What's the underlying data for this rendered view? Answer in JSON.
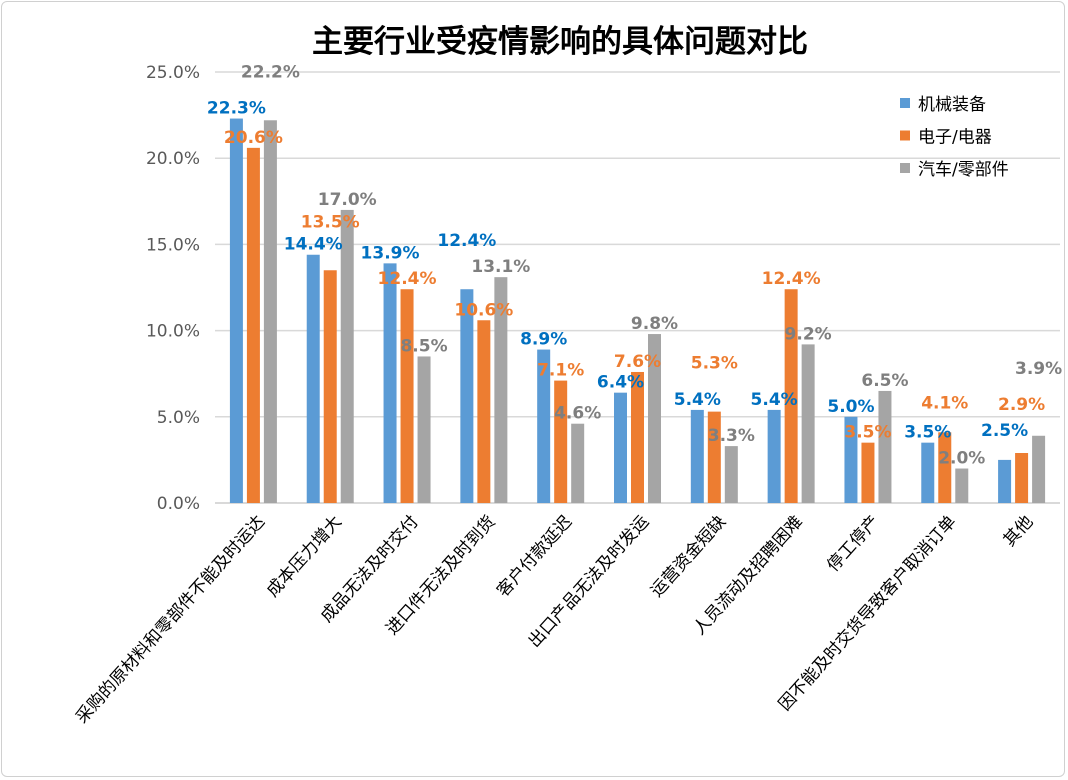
{
  "chart_data": {
    "type": "bar",
    "title": "主要行业受疫情影响的具体问题对比",
    "categories": [
      "采购的原材料和零部件不能及时运达",
      "成本压力增大",
      "成品无法及时交付",
      "进口件无法及时到货",
      "客户付款延迟",
      "出口产品无法及时发运",
      "运营资金短缺",
      "人员流动及招聘困难",
      "停工停产",
      "因不能及时交货导致客户取消订单",
      "其他"
    ],
    "series": [
      {
        "name": "机械装备",
        "color": "#5b9bd5",
        "label_color": "#0070c0",
        "values": [
          22.3,
          14.4,
          13.9,
          12.4,
          8.9,
          6.4,
          5.4,
          5.4,
          5.0,
          3.5,
          2.5
        ]
      },
      {
        "name": "电子/电器",
        "color": "#ed7d31",
        "label_color": "#ed7d31",
        "values": [
          20.6,
          13.5,
          12.4,
          10.6,
          7.1,
          7.6,
          5.3,
          12.4,
          3.5,
          4.1,
          2.9
        ]
      },
      {
        "name": "汽车/零部件",
        "color": "#a5a5a5",
        "label_color": "#7f7f7f",
        "values": [
          22.2,
          17.0,
          8.5,
          13.1,
          4.6,
          9.8,
          3.3,
          9.2,
          6.5,
          2.0,
          3.9
        ]
      }
    ],
    "yticks": [
      "0.0%",
      "5.0%",
      "10.0%",
      "15.0%",
      "20.0%",
      "25.0%"
    ],
    "ylim": [
      0,
      25
    ],
    "grid": true,
    "legend": "top-right",
    "xlabel": "",
    "ylabel": ""
  }
}
